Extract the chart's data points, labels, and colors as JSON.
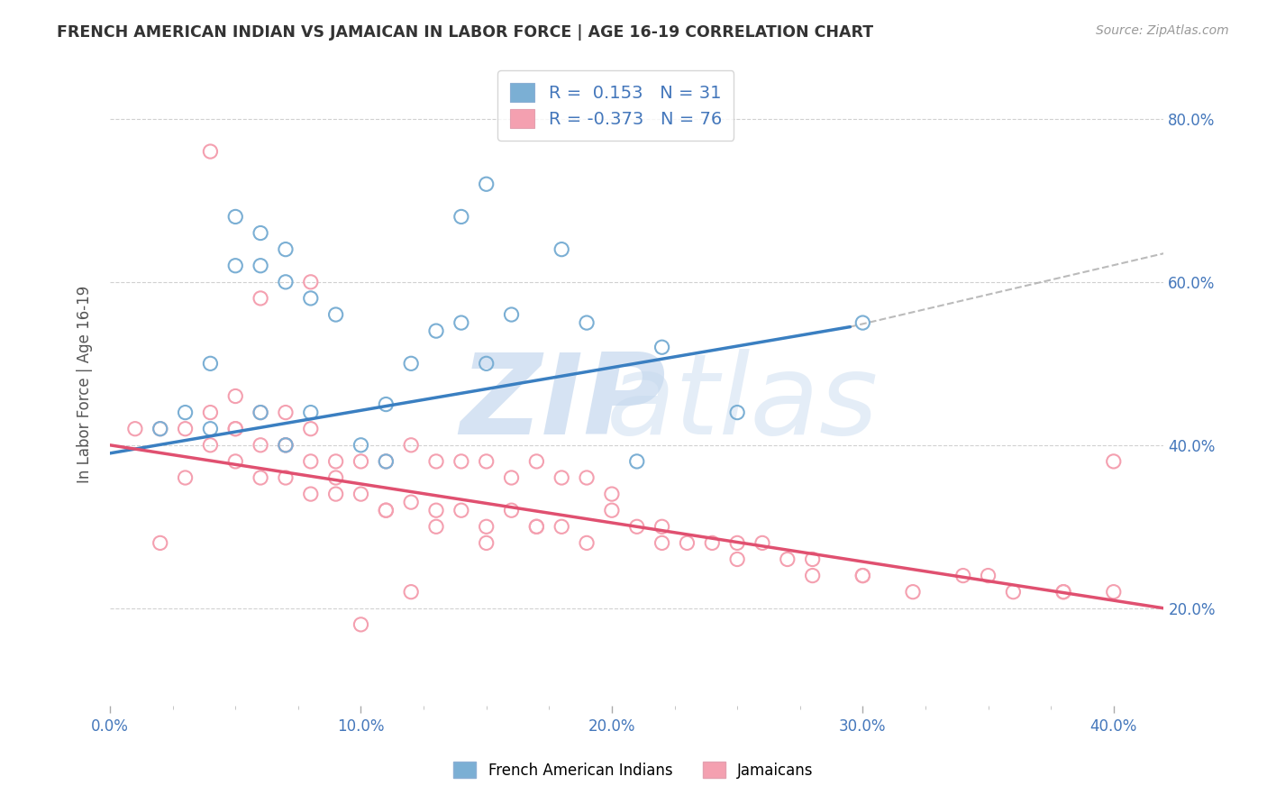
{
  "title": "FRENCH AMERICAN INDIAN VS JAMAICAN IN LABOR FORCE | AGE 16-19 CORRELATION CHART",
  "source": "Source: ZipAtlas.com",
  "ylabel": "In Labor Force | Age 16-19",
  "xlim": [
    0.0,
    0.42
  ],
  "ylim": [
    0.08,
    0.87
  ],
  "xticks": [
    0.0,
    0.1,
    0.2,
    0.3,
    0.4
  ],
  "yticks": [
    0.2,
    0.4,
    0.6,
    0.8
  ],
  "ytick_labels": [
    "20.0%",
    "40.0%",
    "60.0%",
    "80.0%"
  ],
  "xtick_labels": [
    "0.0%",
    "10.0%",
    "20.0%",
    "30.0%",
    "40.0%"
  ],
  "color_blue": "#7BAFD4",
  "color_pink": "#F4A0B0",
  "color_line_blue": "#3A7FC1",
  "color_line_pink": "#E05070",
  "color_text": "#4477BB",
  "legend_R1": "0.153",
  "legend_N1": "31",
  "legend_R2": "-0.373",
  "legend_N2": "76",
  "legend_label1": "French American Indians",
  "legend_label2": "Jamaicans",
  "blue_scatter_x": [
    0.02,
    0.03,
    0.04,
    0.05,
    0.05,
    0.06,
    0.06,
    0.07,
    0.07,
    0.08,
    0.09,
    0.1,
    0.11,
    0.12,
    0.13,
    0.14,
    0.15,
    0.16,
    0.18,
    0.19,
    0.21,
    0.25,
    0.3,
    0.04,
    0.06,
    0.07,
    0.08,
    0.11,
    0.14,
    0.15,
    0.22
  ],
  "blue_scatter_y": [
    0.42,
    0.44,
    0.5,
    0.62,
    0.68,
    0.62,
    0.66,
    0.6,
    0.64,
    0.58,
    0.56,
    0.4,
    0.38,
    0.5,
    0.54,
    0.68,
    0.72,
    0.56,
    0.64,
    0.55,
    0.38,
    0.44,
    0.55,
    0.42,
    0.44,
    0.4,
    0.44,
    0.45,
    0.55,
    0.5,
    0.52
  ],
  "pink_scatter_x": [
    0.01,
    0.02,
    0.03,
    0.03,
    0.04,
    0.04,
    0.05,
    0.05,
    0.05,
    0.06,
    0.06,
    0.06,
    0.07,
    0.07,
    0.07,
    0.08,
    0.08,
    0.08,
    0.09,
    0.09,
    0.1,
    0.1,
    0.11,
    0.11,
    0.12,
    0.12,
    0.13,
    0.13,
    0.14,
    0.14,
    0.15,
    0.15,
    0.16,
    0.16,
    0.17,
    0.17,
    0.18,
    0.18,
    0.19,
    0.19,
    0.2,
    0.21,
    0.22,
    0.23,
    0.24,
    0.25,
    0.26,
    0.27,
    0.28,
    0.3,
    0.32,
    0.34,
    0.36,
    0.38,
    0.4,
    0.05,
    0.07,
    0.09,
    0.11,
    0.13,
    0.15,
    0.17,
    0.2,
    0.22,
    0.25,
    0.28,
    0.3,
    0.35,
    0.38,
    0.4,
    0.1,
    0.12,
    0.08,
    0.06,
    0.04,
    0.02
  ],
  "pink_scatter_y": [
    0.42,
    0.42,
    0.36,
    0.42,
    0.4,
    0.44,
    0.38,
    0.42,
    0.46,
    0.36,
    0.4,
    0.44,
    0.36,
    0.4,
    0.44,
    0.34,
    0.38,
    0.42,
    0.34,
    0.38,
    0.34,
    0.38,
    0.32,
    0.38,
    0.33,
    0.4,
    0.32,
    0.38,
    0.32,
    0.38,
    0.3,
    0.38,
    0.32,
    0.36,
    0.3,
    0.38,
    0.3,
    0.36,
    0.28,
    0.36,
    0.32,
    0.3,
    0.28,
    0.28,
    0.28,
    0.26,
    0.28,
    0.26,
    0.24,
    0.24,
    0.22,
    0.24,
    0.22,
    0.22,
    0.22,
    0.42,
    0.4,
    0.36,
    0.32,
    0.3,
    0.28,
    0.3,
    0.34,
    0.3,
    0.28,
    0.26,
    0.24,
    0.24,
    0.22,
    0.38,
    0.18,
    0.22,
    0.6,
    0.58,
    0.76,
    0.28
  ],
  "blue_line_x": [
    0.0,
    0.295
  ],
  "blue_line_y": [
    0.39,
    0.545
  ],
  "dash_line_x": [
    0.295,
    0.42
  ],
  "dash_line_y": [
    0.545,
    0.635
  ],
  "pink_line_x": [
    0.0,
    0.42
  ],
  "pink_line_y": [
    0.4,
    0.2
  ]
}
